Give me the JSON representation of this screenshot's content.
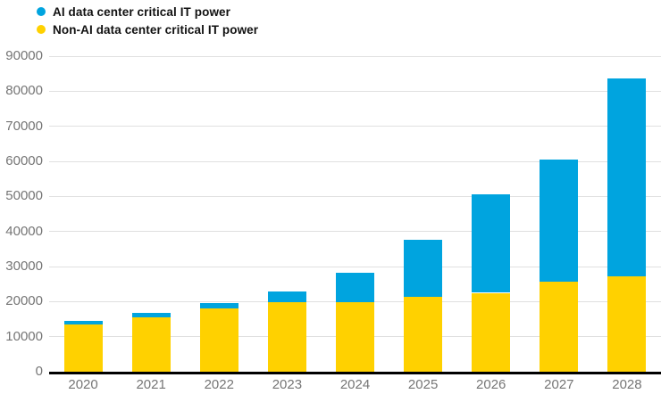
{
  "chart_data": {
    "type": "bar",
    "stacked": true,
    "title": "",
    "xlabel": "",
    "ylabel": "",
    "categories": [
      "2020",
      "2021",
      "2022",
      "2023",
      "2024",
      "2025",
      "2026",
      "2027",
      "2028"
    ],
    "series": [
      {
        "name": "AI data center critical IT power",
        "color": "#00a4df",
        "values": [
          900,
          1400,
          1500,
          3100,
          8200,
          16200,
          28000,
          35000,
          56600
        ]
      },
      {
        "name": "Non-AI data center critical IT power",
        "color": "#ffd100",
        "values": [
          13500,
          15400,
          18100,
          19800,
          19900,
          21400,
          22500,
          25600,
          27100
        ]
      }
    ],
    "stack_order_bottom_to_top": [
      1,
      0
    ],
    "totals": [
      14400,
      16800,
      19600,
      22900,
      28100,
      37600,
      50500,
      60600,
      83700
    ],
    "ylim": [
      0,
      90000
    ],
    "yticks": [
      0,
      10000,
      20000,
      30000,
      40000,
      50000,
      60000,
      70000,
      80000,
      90000
    ],
    "grid": "horizontal",
    "legend_position": "top-left"
  },
  "colors": {
    "ai_blue": "#00a4df",
    "non_ai_yellow": "#ffd100",
    "gridline": "#e0e0e0",
    "axis_line": "#000000",
    "tick_label": "#757575",
    "legend_text": "#111111",
    "background": "#ffffff"
  }
}
